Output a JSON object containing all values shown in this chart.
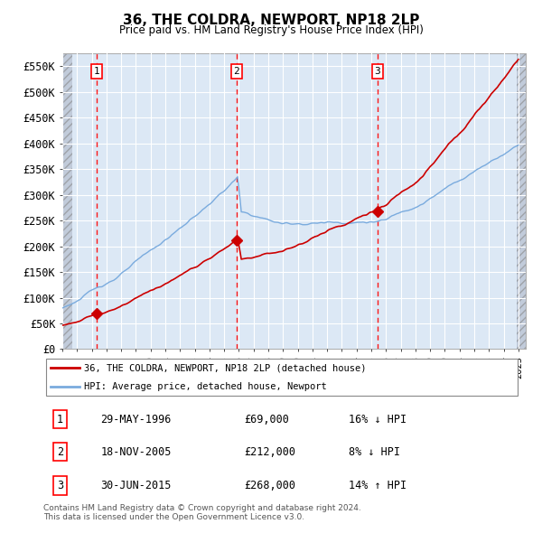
{
  "title": "36, THE COLDRA, NEWPORT, NP18 2LP",
  "subtitle": "Price paid vs. HM Land Registry's House Price Index (HPI)",
  "ylim": [
    0,
    575000
  ],
  "yticks": [
    0,
    50000,
    100000,
    150000,
    200000,
    250000,
    300000,
    350000,
    400000,
    450000,
    500000,
    550000
  ],
  "ytick_labels": [
    "£0",
    "£50K",
    "£100K",
    "£150K",
    "£200K",
    "£250K",
    "£300K",
    "£350K",
    "£400K",
    "£450K",
    "£500K",
    "£550K"
  ],
  "sale_prices": [
    69000,
    212000,
    268000
  ],
  "sale_labels": [
    "1",
    "2",
    "3"
  ],
  "sale_info": [
    {
      "num": "1",
      "date": "29-MAY-1996",
      "price": "£69,000",
      "pct": "16%",
      "dir": "↓",
      "label": "HPI"
    },
    {
      "num": "2",
      "date": "18-NOV-2005",
      "price": "£212,000",
      "pct": "8%",
      "dir": "↓",
      "label": "HPI"
    },
    {
      "num": "3",
      "date": "30-JUN-2015",
      "price": "£268,000",
      "pct": "14%",
      "dir": "↑",
      "label": "HPI"
    }
  ],
  "legend_line1": "36, THE COLDRA, NEWPORT, NP18 2LP (detached house)",
  "legend_line2": "HPI: Average price, detached house, Newport",
  "footer1": "Contains HM Land Registry data © Crown copyright and database right 2024.",
  "footer2": "This data is licensed under the Open Government Licence v3.0.",
  "line_color_red": "#cc0000",
  "line_color_blue": "#7aabde",
  "plot_bg": "#dce8f5",
  "hatch_bg": "#c8c8c8"
}
